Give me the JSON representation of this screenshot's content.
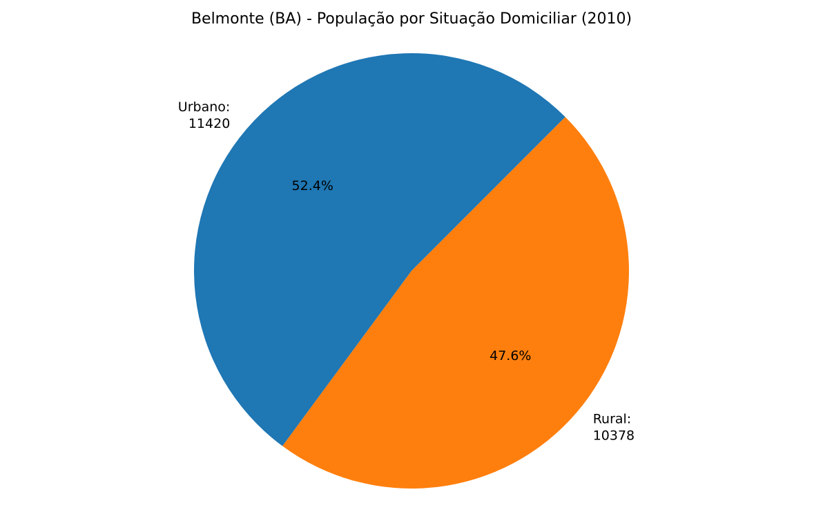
{
  "chart_data": {
    "type": "pie",
    "title": "Belmonte (BA) - População por Situação Domiciliar (2010)",
    "categories": [
      "Urbano",
      "Rural"
    ],
    "values": [
      11420,
      10378
    ],
    "labels": [
      "Urbano:\n11420",
      "Rural:\n10378"
    ],
    "percent_labels": [
      "52.4%",
      "47.6%"
    ],
    "colors": [
      "#1f77b4",
      "#ff7f0e"
    ],
    "start_angle_deg": 45,
    "direction": "counterclockwise"
  }
}
